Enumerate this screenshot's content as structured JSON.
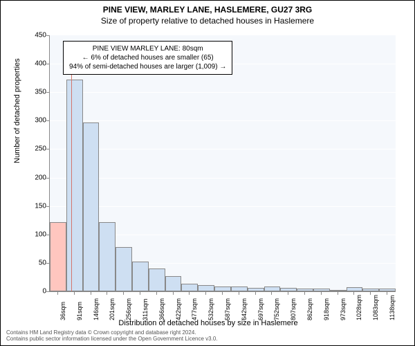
{
  "title": "PINE VIEW, MARLEY LANE, HASLEMERE, GU27 3RG",
  "subtitle": "Size of property relative to detached houses in Haslemere",
  "chart": {
    "type": "histogram",
    "plot_background": "#f5f8fc",
    "grid_color": "#ffffff",
    "axis_color": "#888888",
    "ylim": [
      0,
      450
    ],
    "ytick_step": 50,
    "yticks": [
      0,
      50,
      100,
      150,
      200,
      250,
      300,
      350,
      400,
      450
    ],
    "ylabel": "Number of detached properties",
    "xlabel": "Distribution of detached houses by size in Haslemere",
    "x_categories": [
      "36sqm",
      "91sqm",
      "146sqm",
      "201sqm",
      "256sqm",
      "311sqm",
      "366sqm",
      "422sqm",
      "477sqm",
      "532sqm",
      "587sqm",
      "642sqm",
      "697sqm",
      "752sqm",
      "807sqm",
      "862sqm",
      "918sqm",
      "973sqm",
      "1028sqm",
      "1083sqm",
      "1138sqm"
    ],
    "bars": [
      {
        "value": 122,
        "color": "#ffc6bf"
      },
      {
        "value": 372,
        "color": "#cedff2"
      },
      {
        "value": 297,
        "color": "#cedff2"
      },
      {
        "value": 122,
        "color": "#cedff2"
      },
      {
        "value": 78,
        "color": "#cedff2"
      },
      {
        "value": 52,
        "color": "#cedff2"
      },
      {
        "value": 40,
        "color": "#cedff2"
      },
      {
        "value": 27,
        "color": "#cedff2"
      },
      {
        "value": 14,
        "color": "#cedff2"
      },
      {
        "value": 11,
        "color": "#cedff2"
      },
      {
        "value": 9,
        "color": "#cedff2"
      },
      {
        "value": 9,
        "color": "#cedff2"
      },
      {
        "value": 6,
        "color": "#cedff2"
      },
      {
        "value": 9,
        "color": "#cedff2"
      },
      {
        "value": 6,
        "color": "#cedff2"
      },
      {
        "value": 5,
        "color": "#cedff2"
      },
      {
        "value": 5,
        "color": "#cedff2"
      },
      {
        "value": 3,
        "color": "#cedff2"
      },
      {
        "value": 7,
        "color": "#cedff2"
      },
      {
        "value": 5,
        "color": "#cedff2"
      },
      {
        "value": 5,
        "color": "#cedff2"
      }
    ],
    "bar_border_color": "#888888",
    "bar_width_ratio": 1.0,
    "marker": {
      "position_index": 0.8,
      "color": "#d4756b",
      "height_value": 395
    }
  },
  "annotation": {
    "line1": "PINE VIEW MARLEY LANE: 80sqm",
    "line2": "← 6% of detached houses are smaller (65)",
    "line3": "94% of semi-detached houses are larger (1,009) →"
  },
  "footer": {
    "line1": "Contains HM Land Registry data © Crown copyright and database right 2024.",
    "line2": "Contains public sector information licensed under the Open Government Licence v3.0."
  }
}
